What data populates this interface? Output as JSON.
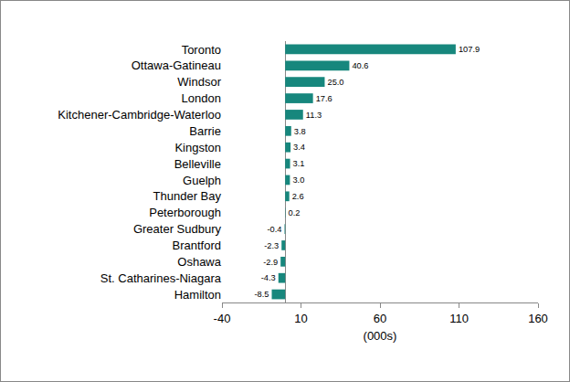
{
  "chart_data": {
    "type": "bar",
    "orientation": "horizontal",
    "categories": [
      "Toronto",
      "Ottawa-Gatineau",
      "Windsor",
      "London",
      "Kitchener-Cambridge-Waterloo",
      "Barrie",
      "Kingston",
      "Belleville",
      "Guelph",
      "Thunder Bay",
      "Peterborough",
      "Greater Sudbury",
      "Brantford",
      "Oshawa",
      "St. Catharines-Niagara",
      "Hamilton"
    ],
    "values": [
      107.9,
      40.6,
      25.0,
      17.6,
      11.3,
      3.8,
      3.4,
      3.1,
      3.0,
      2.6,
      0.2,
      -0.4,
      -2.3,
      -2.9,
      -4.3,
      -8.5
    ],
    "value_labels": [
      "107.9",
      "40.6",
      "25.0",
      "17.6",
      "11.3",
      "3.8",
      "3.4",
      "3.1",
      "3.0",
      "2.6",
      "0.2",
      "-0.4",
      "-2.3",
      "-2.9",
      "-4.3",
      "-8.5"
    ],
    "color": "#17877d",
    "xlabel": "(000s)",
    "xlim": [
      -40,
      160
    ],
    "xticks": [
      -40,
      10,
      60,
      110,
      160
    ],
    "grid": false,
    "data_labels": true
  }
}
